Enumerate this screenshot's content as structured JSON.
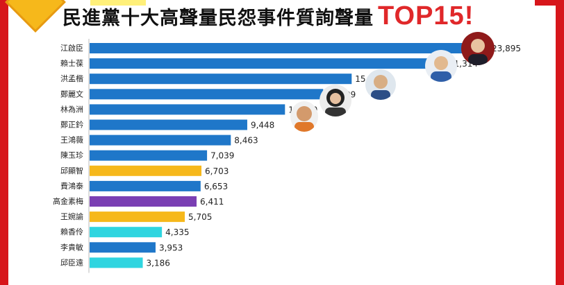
{
  "title": {
    "main": "民進黨十大高聲量民怨事件質詢聲量",
    "accent": "TOP15!"
  },
  "colors": {
    "frame": "#d7161b",
    "accent": "#e0282a"
  },
  "chart_data": {
    "type": "bar",
    "orientation": "horizontal",
    "categories": [
      "江啟臣",
      "賴士葆",
      "洪孟楷",
      "鄭麗文",
      "林為洲",
      "鄭正鈐",
      "王鴻薇",
      "陳玉珍",
      "邱顯智",
      "費鴻泰",
      "高金素梅",
      "王婉諭",
      "賴香伶",
      "李貴敏",
      "邱臣遠"
    ],
    "values": [
      23895,
      21314,
      15706,
      13999,
      11710,
      9448,
      8463,
      7039,
      6703,
      6653,
      6411,
      5705,
      4335,
      3953,
      3186
    ],
    "value_labels": [
      "23,895",
      "21,314",
      "15,706",
      "13,999",
      "11,710",
      "9,448",
      "8,463",
      "7,039",
      "6,703",
      "6,653",
      "6,411",
      "5,705",
      "4,335",
      "3,953",
      "3,186"
    ],
    "bar_colors": [
      "#1f77c9",
      "#1f77c9",
      "#1f77c9",
      "#1f77c9",
      "#1f77c9",
      "#1f77c9",
      "#1f77c9",
      "#1f77c9",
      "#f6b81b",
      "#1f77c9",
      "#7a3fb3",
      "#f6b81b",
      "#2fd5e0",
      "#1f77c9",
      "#2fd5e0"
    ],
    "xlim": [
      0,
      25000
    ]
  }
}
